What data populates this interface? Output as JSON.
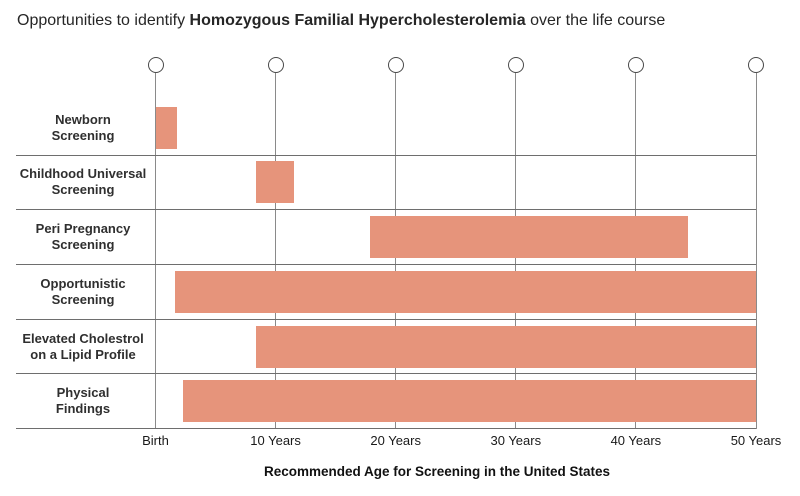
{
  "title": {
    "prefix": "Opportunities to identify ",
    "emphasis": "Homozygous Familial Hypercholesterolemia",
    "suffix": " over the life course"
  },
  "colors": {
    "bar": "#E6947B",
    "grid_line": "#8a8a8a",
    "row_line": "#6e6e6e",
    "node_stroke": "#4a4a4a",
    "text": "#262626"
  },
  "chart_data": {
    "type": "bar",
    "variant": "horizontal-timeline-gantt",
    "title": "Opportunities to identify Homozygous Familial Hypercholesterolemia over the life course",
    "xlabel": "Recommended Age for Screening in the United States",
    "unit": "years",
    "xlim": [
      0,
      50
    ],
    "grid": true,
    "bar_color": "#E6947B",
    "x_ticks": [
      {
        "value": 0,
        "label": "Birth"
      },
      {
        "value": 10,
        "label": "10 Years"
      },
      {
        "value": 20,
        "label": "20 Years"
      },
      {
        "value": 30,
        "label": "30 Years"
      },
      {
        "value": 40,
        "label": "40 Years"
      },
      {
        "value": 50,
        "label": "50 Years"
      }
    ],
    "rows": [
      {
        "label_lines": [
          "Newborn",
          "Screening"
        ],
        "start": 0,
        "end": 1.8
      },
      {
        "label_lines": [
          "Childhood Universal",
          "Screening"
        ],
        "start": 8.4,
        "end": 11.5
      },
      {
        "label_lines": [
          "Peri Pregnancy",
          "Screening"
        ],
        "start": 17.9,
        "end": 44.3
      },
      {
        "label_lines": [
          "Opportunistic",
          "Screening"
        ],
        "start": 1.6,
        "end": 50
      },
      {
        "label_lines": [
          "Elevated Cholestrol",
          "on a Lipid Profile"
        ],
        "start": 8.4,
        "end": 50
      },
      {
        "label_lines": [
          "Physical",
          "Findings"
        ],
        "start": 2.3,
        "end": 50
      }
    ]
  }
}
